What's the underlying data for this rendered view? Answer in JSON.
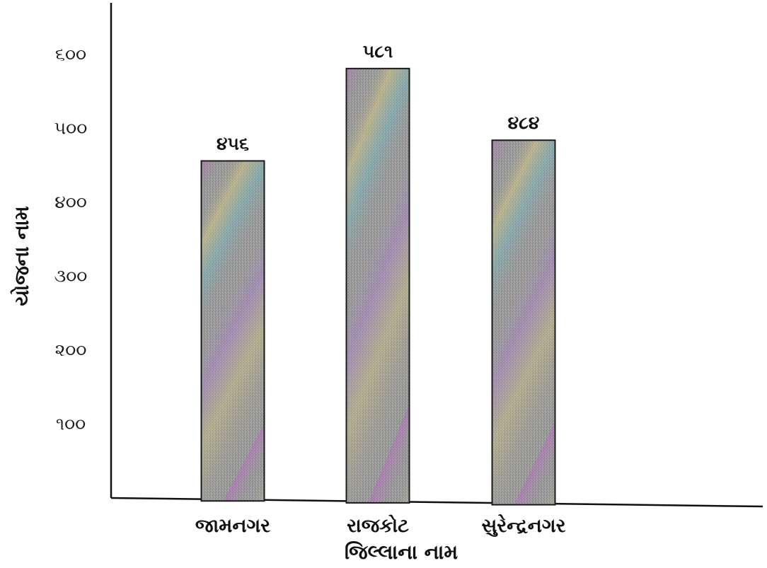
{
  "chart_data": {
    "type": "bar",
    "categories": [
      "જામનગર",
      "રાજકોટ",
      "સુરેન્દ્રનગર"
    ],
    "values": [
      456,
      581,
      484
    ],
    "value_labels": [
      "૪૫૬",
      "૫૮૧",
      "૪૮૪"
    ],
    "xlabel": "જિલ્લાના નામ",
    "ylabel": "યોજના નામ",
    "ylim": [
      0,
      600
    ],
    "y_ticks": [
      100,
      200,
      300,
      400,
      500,
      600
    ],
    "y_tick_labels": [
      "૧૦૦",
      "૨૦૦",
      "૩૦૦",
      "૪૦૦",
      "૫૦૦",
      "૬૦૦"
    ],
    "grid": false,
    "legend": "none",
    "colors": {
      "bar_base": "#9a9a9a",
      "bar_stroke": "#1a1a1a",
      "axis": "#111111",
      "sheen": [
        "#c25fd0",
        "#e0d07a",
        "#6fc0c8",
        "#b07fd8"
      ]
    }
  }
}
